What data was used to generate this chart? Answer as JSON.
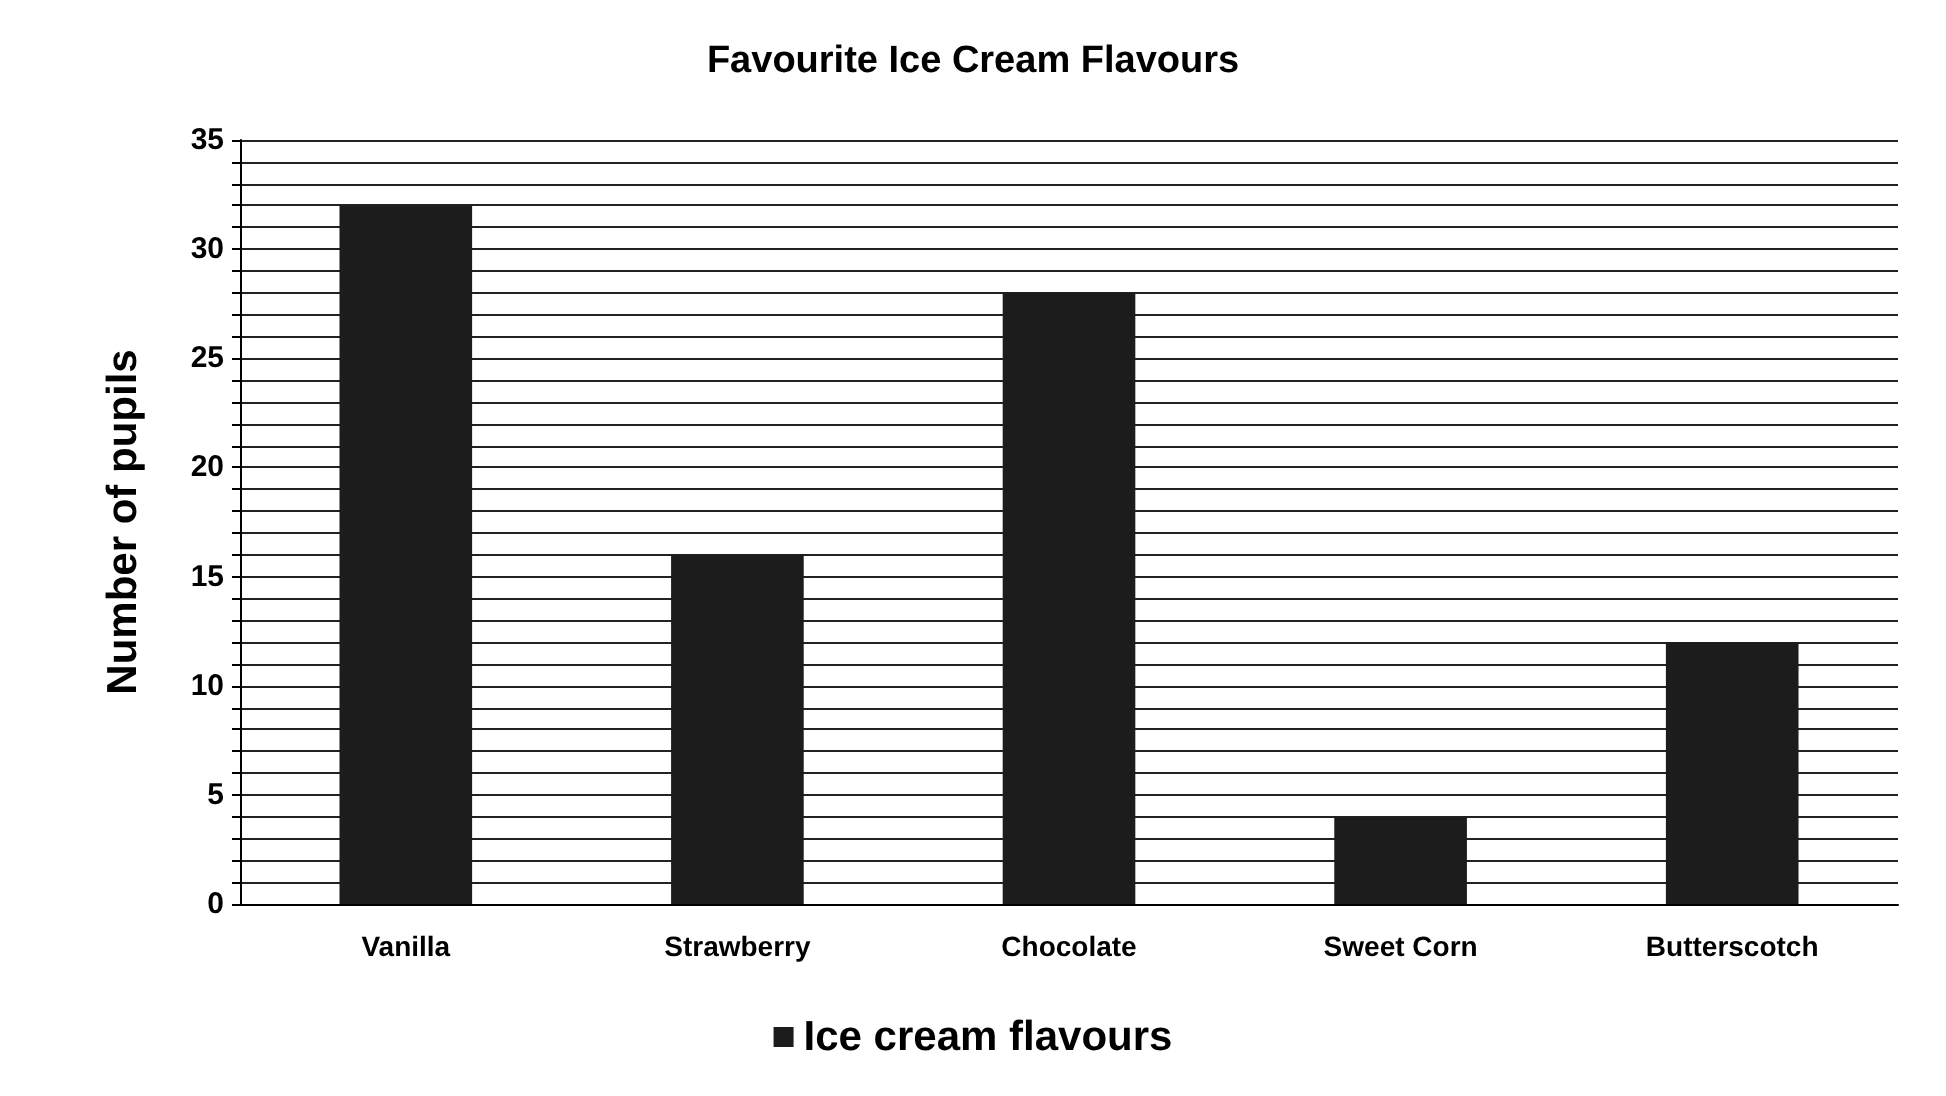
{
  "chart_data": {
    "type": "bar",
    "title": "Favourite Ice Cream Flavours",
    "ylabel": "Number of pupils",
    "categories": [
      "Vanilla",
      "Strawberry",
      "Chocolate",
      "Sweet Corn",
      "Butterscotch"
    ],
    "series": [
      {
        "name": "Ice cream flavours",
        "color": "#1c1c1c",
        "values": [
          32,
          16,
          28,
          4,
          12
        ]
      }
    ],
    "ylim": [
      0,
      35
    ],
    "yticks": [
      0,
      {
        "value": 1,
        "label": null
      },
      {
        "value": 2,
        "label": null
      },
      {
        "value": 3,
        "label": null
      },
      {
        "value": 4,
        "label": null
      },
      5,
      {
        "value": 6,
        "label": null
      },
      {
        "value": 7,
        "label": null
      },
      {
        "value": 8,
        "label": null
      },
      {
        "value": 9,
        "label": null
      },
      10,
      {
        "value": 11,
        "label": null
      },
      {
        "value": 12,
        "label": null
      },
      {
        "value": 13,
        "label": null
      },
      {
        "value": 14,
        "label": null
      },
      15,
      {
        "value": 16,
        "label": null
      },
      {
        "value": 17,
        "label": null
      },
      {
        "value": 18,
        "label": null
      },
      {
        "value": 19,
        "label": null
      },
      20,
      {
        "value": 21,
        "label": null
      },
      {
        "value": 22,
        "label": null
      },
      {
        "value": 23,
        "label": null
      },
      {
        "value": 24,
        "label": null
      },
      25,
      {
        "value": 26,
        "label": null
      },
      {
        "value": 27,
        "label": null
      },
      {
        "value": 28,
        "label": null
      },
      {
        "value": 29,
        "label": null
      },
      30,
      {
        "value": 31,
        "label": null
      },
      {
        "value": 32,
        "label": null
      },
      {
        "value": 33,
        "label": null
      },
      {
        "value": 34,
        "label": null
      },
      35
    ],
    "grid": true,
    "legend": "bottom"
  }
}
